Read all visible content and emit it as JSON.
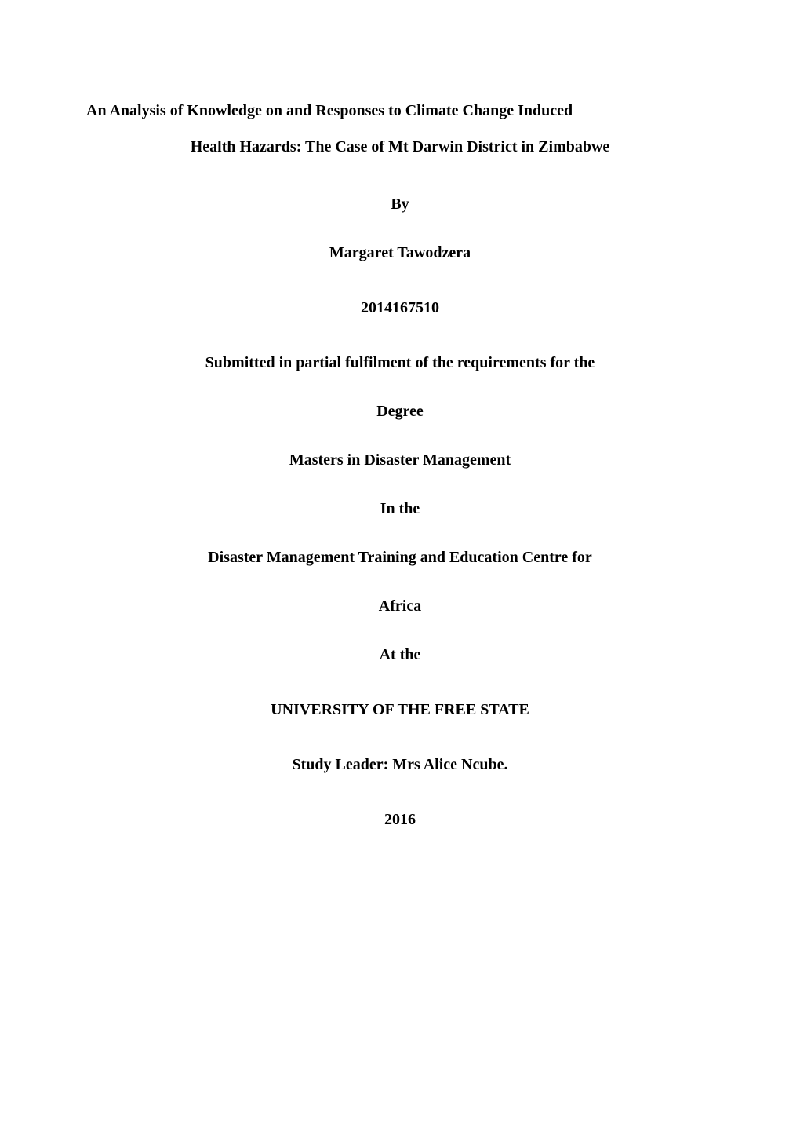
{
  "document": {
    "background_color": "#ffffff",
    "text_color": "#000000",
    "font_family": "Times New Roman",
    "base_font_size": 20,
    "font_weight": "bold",
    "title_line_1": "An Analysis of Knowledge on and Responses to Climate Change Induced",
    "title_line_2": "Health Hazards: The Case of Mt Darwin District in Zimbabwe",
    "by_label": "By",
    "author_name": "Margaret Tawodzera",
    "student_number": "2014167510",
    "submission_line": "Submitted in partial fulfilment of the requirements for the",
    "degree_label": "Degree",
    "degree_name": "Masters in Disaster Management",
    "in_the_label": "In the",
    "centre_line": "Disaster Management Training and Education Centre for",
    "centre_location": "Africa",
    "at_the_label": "At the",
    "university": "UNIVERSITY OF THE FREE STATE",
    "study_leader": "Study Leader: Mrs Alice Ncube.",
    "year": "2016"
  }
}
